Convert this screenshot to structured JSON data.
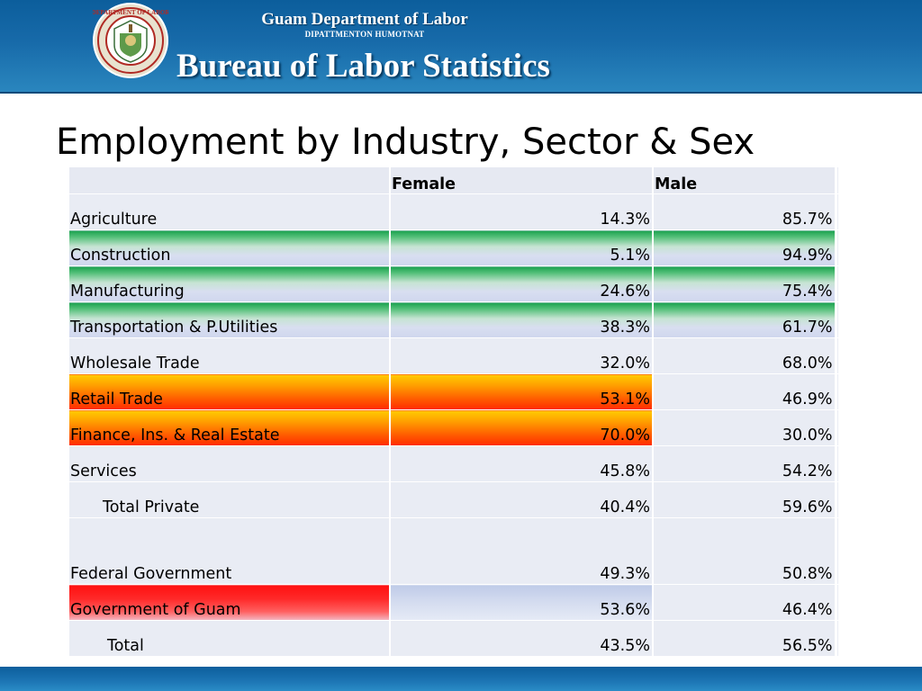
{
  "header": {
    "agency_title": "Guam Department of Labor",
    "agency_subtitle": "DIPATTMENTON HUMOTNAT",
    "bureau": "Bureau of Labor Statistics",
    "seal_text": "DEPARTMENT OF LABOR",
    "colors": {
      "banner": "#176aa9",
      "footer": "#1b73b2"
    }
  },
  "title": "Employment by Industry, Sector & Sex",
  "table": {
    "columns": [
      "",
      "Female",
      "Male"
    ],
    "rows": [
      {
        "label": "Agriculture",
        "female": "14.3%",
        "male": "85.7%"
      },
      {
        "label": "Construction",
        "female": "5.1%",
        "male": "94.9%"
      },
      {
        "label": "Manufacturing",
        "female": "24.6%",
        "male": "75.4%"
      },
      {
        "label": "Transportation & P.Utilities",
        "female": "38.3%",
        "male": "61.7%"
      },
      {
        "label": "Wholesale Trade",
        "female": "32.0%",
        "male": "68.0%"
      },
      {
        "label": "Retail Trade",
        "female": "53.1%",
        "male": "46.9%"
      },
      {
        "label": "Finance, Ins. & Real Estate",
        "female": "70.0%",
        "male": "30.0%"
      },
      {
        "label": "Services",
        "female": "45.8%",
        "male": "54.2%"
      },
      {
        "label": "Total Private",
        "female": "40.4%",
        "male": "59.6%"
      },
      {
        "label": "Federal Government",
        "female": "49.3%",
        "male": "50.8%"
      },
      {
        "label": "Government of Guam",
        "female": "53.6%",
        "male": "46.4%"
      },
      {
        "label": "Total",
        "female": "43.5%",
        "male": "56.5%"
      }
    ],
    "highlight_colors": {
      "green": "#1aa24e",
      "orange": "#ff6a00",
      "red": "#ff1a1a",
      "blue": "#c9d3ec"
    }
  }
}
